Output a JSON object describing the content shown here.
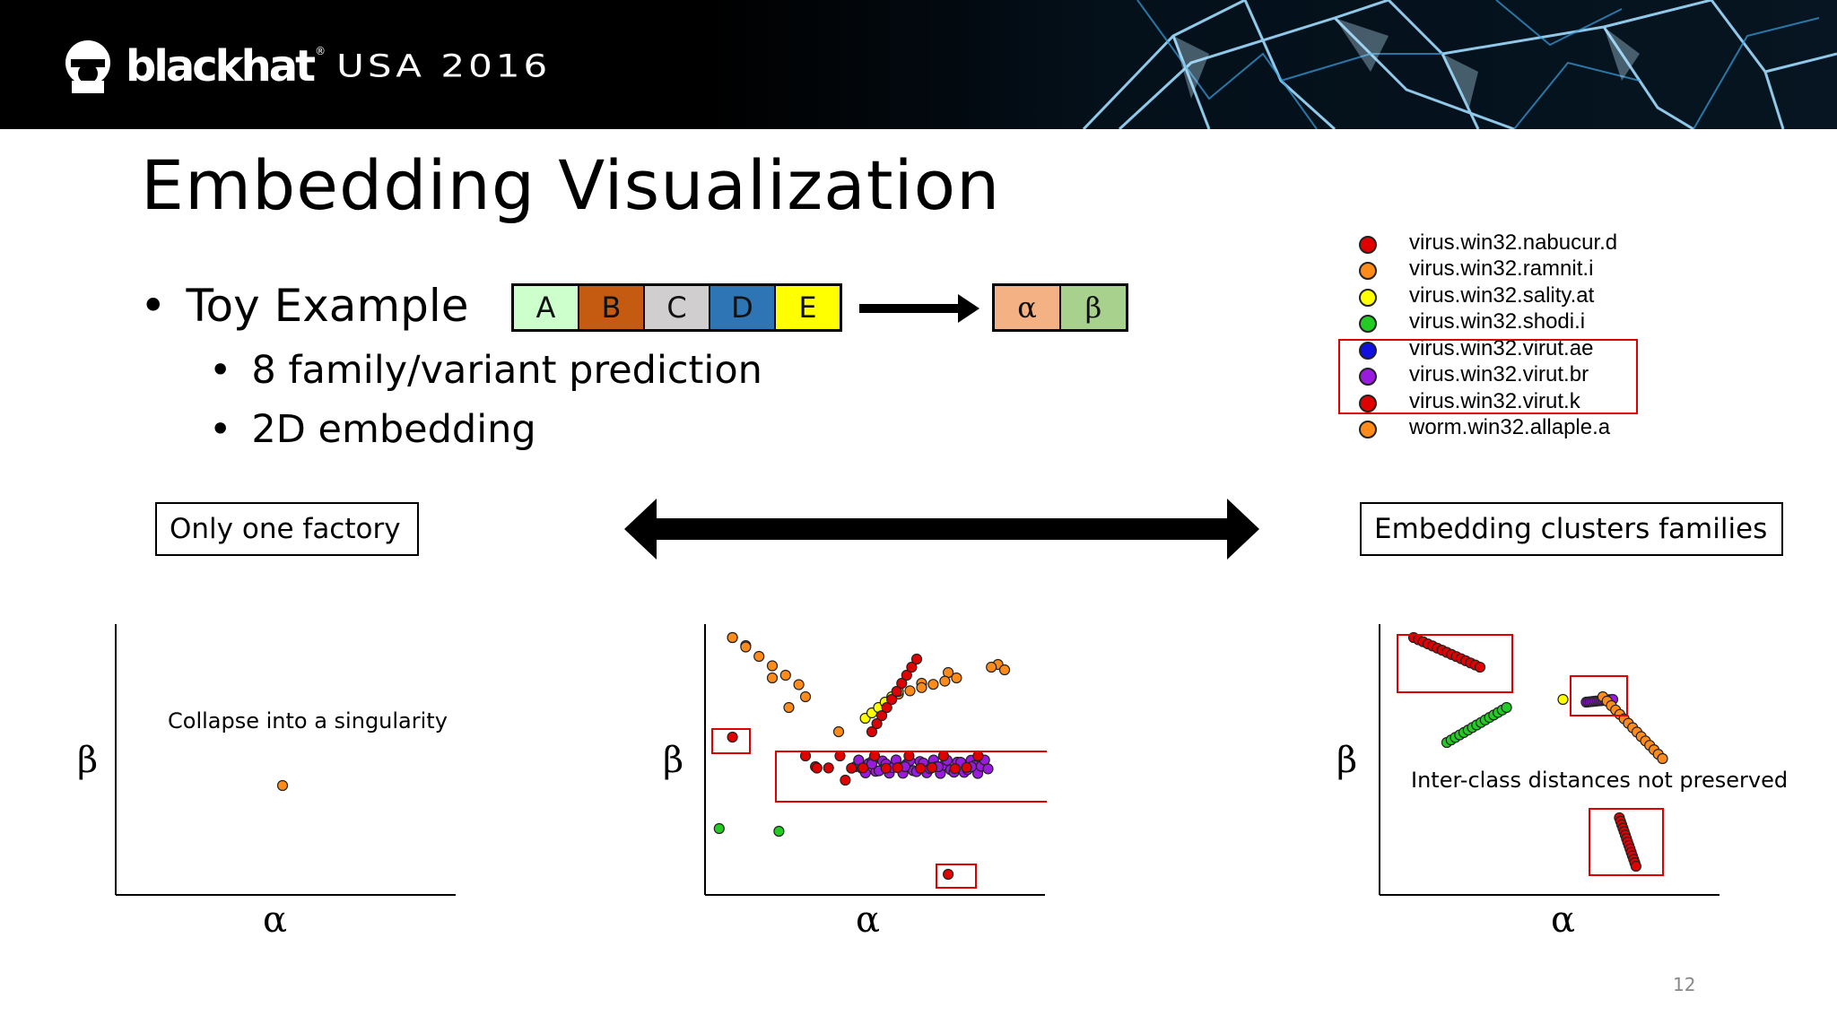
{
  "header": {
    "brand": "blackhat",
    "registered": "®",
    "event": "USA 2016"
  },
  "slide": {
    "title": "Embedding Visualization",
    "bullets": {
      "main": "Toy Example",
      "sub1": "8 family/variant prediction",
      "sub2": "2D embedding",
      "bullet_char": "•"
    },
    "input_sequence": [
      "A",
      "B",
      "C",
      "D",
      "E"
    ],
    "input_colors": [
      "#ccffcc",
      "#c55a11",
      "#d0cece",
      "#2e75b6",
      "#ffff00"
    ],
    "output_sequence": [
      "α",
      "β"
    ],
    "output_colors": [
      "#f4b183",
      "#a9d18e"
    ],
    "legend": [
      {
        "label": "virus.win32.nabucur.d",
        "color": "#e00000"
      },
      {
        "label": "virus.win32.ramnit.i",
        "color": "#ff8c1a"
      },
      {
        "label": "virus.win32.sality.at",
        "color": "#ffff00"
      },
      {
        "label": "virus.win32.shodi.i",
        "color": "#22cc22"
      },
      {
        "label": "virus.win32.virut.ae",
        "color": "#1010e0"
      },
      {
        "label": "virus.win32.virut.br",
        "color": "#9a1ae0"
      },
      {
        "label": "virus.win32.virut.k",
        "color": "#e00000"
      },
      {
        "label": "worm.win32.allaple.a",
        "color": "#ff8c1a"
      }
    ],
    "labels": {
      "left_box": "Only one factory",
      "right_box": "Embedding  clusters families"
    },
    "plots": {
      "x_axis": "α",
      "y_axis": "β",
      "left_note": "Collapse into a singularity",
      "right_note": "Inter-class distances not preserved"
    },
    "page_number": "12"
  },
  "chart_data": [
    {
      "type": "scatter",
      "title": "",
      "xlabel": "α",
      "ylabel": "β",
      "annotation": "Collapse into a singularity",
      "series": [
        {
          "name": "virus.win32.ramnit.i",
          "points": [
            [
              0.5,
              0.4
            ]
          ]
        }
      ]
    },
    {
      "type": "scatter",
      "title": "",
      "xlabel": "α",
      "ylabel": "β",
      "series": [
        {
          "name": "virus.win32.ramnit.i",
          "points": [
            [
              0.08,
              0.95
            ],
            [
              0.12,
              0.92
            ],
            [
              0.2,
              0.8
            ],
            [
              0.3,
              0.73
            ],
            [
              0.65,
              0.78
            ],
            [
              0.73,
              0.82
            ],
            [
              0.88,
              0.85
            ]
          ]
        },
        {
          "name": "virus.win32.sality.at",
          "points": [
            [
              0.5,
              0.68
            ],
            [
              0.52,
              0.72
            ]
          ]
        },
        {
          "name": "virus.win32.shodi.i",
          "points": [
            [
              0.04,
              0.24
            ],
            [
              0.22,
              0.23
            ]
          ]
        },
        {
          "name": "virus.win32.virut.br",
          "points": [
            [
              0.5,
              0.48
            ],
            [
              0.6,
              0.47
            ],
            [
              0.7,
              0.47
            ],
            [
              0.8,
              0.47
            ]
          ]
        },
        {
          "name": "virus.win32.virut.k",
          "points": [
            [
              0.08,
              0.58
            ],
            [
              0.33,
              0.47
            ],
            [
              0.42,
              0.42
            ],
            [
              0.73,
              0.07
            ]
          ]
        }
      ]
    },
    {
      "type": "scatter",
      "title": "",
      "xlabel": "α",
      "ylabel": "β",
      "annotation": "Inter-class distances not preserved",
      "series": [
        {
          "name": "virus.win32.nabucur.d",
          "points": [
            [
              0.1,
              0.95
            ],
            [
              0.3,
              0.84
            ]
          ]
        },
        {
          "name": "virus.win32.shodi.i",
          "points": [
            [
              0.2,
              0.56
            ],
            [
              0.38,
              0.69
            ]
          ]
        },
        {
          "name": "virus.win32.sality.at",
          "points": [
            [
              0.55,
              0.72
            ]
          ]
        },
        {
          "name": "virus.win32.virut.br",
          "points": [
            [
              0.62,
              0.71
            ],
            [
              0.7,
              0.72
            ]
          ]
        },
        {
          "name": "worm.win32.allaple.a",
          "points": [
            [
              0.67,
              0.73
            ],
            [
              0.85,
              0.5
            ]
          ]
        },
        {
          "name": "virus.win32.virut.k",
          "points": [
            [
              0.72,
              0.28
            ],
            [
              0.77,
              0.1
            ]
          ]
        }
      ]
    }
  ]
}
